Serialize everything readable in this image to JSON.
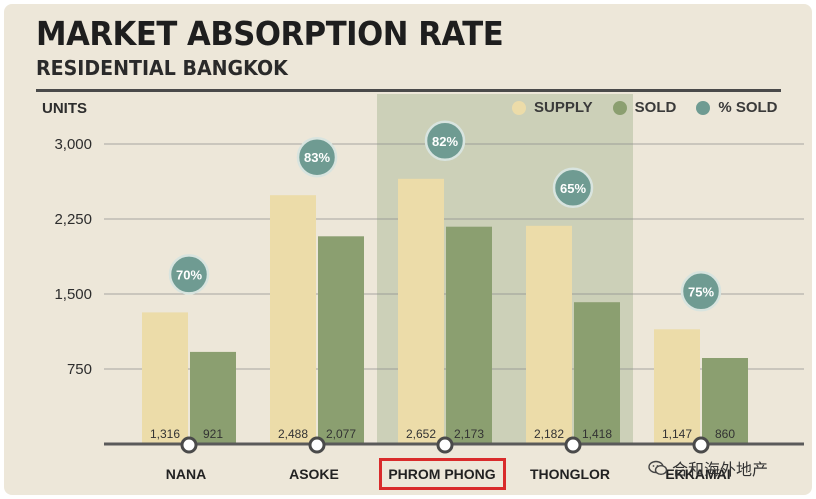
{
  "chart_data": {
    "type": "bar",
    "title": "MARKET ABSORPTION RATE",
    "subtitle": "RESIDENTIAL BANGKOK",
    "ylabel": "UNITS",
    "categories": [
      "NANA",
      "ASOKE",
      "PHROM PHONG",
      "THONGLOR",
      "EKKAMAI"
    ],
    "series": [
      {
        "name": "SUPPLY",
        "values": [
          1316,
          2488,
          2652,
          2182,
          1147
        ],
        "labels": [
          "1,316",
          "2,488",
          "2,652",
          "2,182",
          "1,147"
        ],
        "color": "#ecdca9"
      },
      {
        "name": "SOLD",
        "values": [
          921,
          2077,
          2173,
          1418,
          860
        ],
        "labels": [
          "921",
          "2,077",
          "2,173",
          "1,418",
          "860"
        ],
        "color": "#8b9f70"
      }
    ],
    "percent_sold": {
      "name": "% SOLD",
      "labels": [
        "70%",
        "83%",
        "82%",
        "65%",
        "75%"
      ],
      "values": [
        70,
        83,
        82,
        65,
        75
      ],
      "color": "#6f9b92"
    },
    "yticks": [
      "750",
      "1,500",
      "2,250",
      "3,000"
    ],
    "ytick_values": [
      750,
      1500,
      2250,
      3000
    ],
    "ylim": [
      0,
      3500
    ],
    "highlighted_category": "PHROM PHONG",
    "grid": true,
    "legend_position": "top-right"
  },
  "watermark": {
    "text": "合和海外地产",
    "icon": "wechat-icon"
  }
}
